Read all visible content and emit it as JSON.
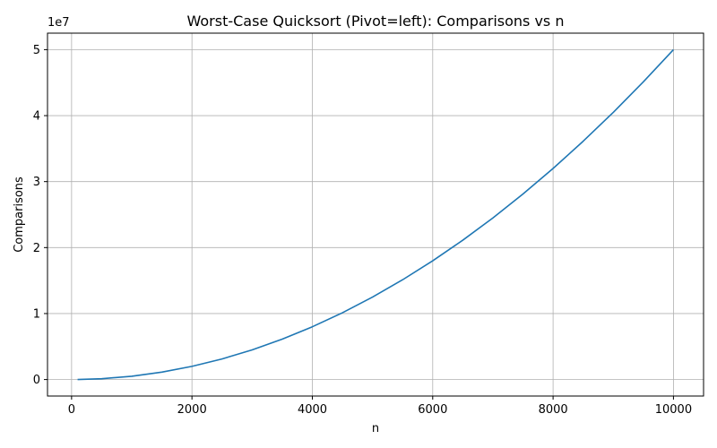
{
  "chart_data": {
    "type": "line",
    "title": "Worst-Case Quicksort (Pivot=left): Comparisons vs n",
    "xlabel": "n",
    "ylabel": "Comparisons",
    "y_offset_label": "1e7",
    "xlim": [
      -400,
      10500
    ],
    "ylim": [
      -0.25,
      5.25
    ],
    "x_ticks": [
      0,
      2000,
      4000,
      6000,
      8000,
      10000
    ],
    "x_tick_labels": [
      "0",
      "2000",
      "4000",
      "6000",
      "8000",
      "10000"
    ],
    "y_ticks": [
      0,
      1,
      2,
      3,
      4,
      5
    ],
    "y_tick_labels": [
      "0",
      "1",
      "2",
      "3",
      "4",
      "5"
    ],
    "grid": true,
    "series": [
      {
        "color": "#1f77b4",
        "x": [
          100,
          500,
          1000,
          1500,
          2000,
          2500,
          3000,
          3500,
          4000,
          4500,
          5000,
          5500,
          6000,
          6500,
          7000,
          7500,
          8000,
          8500,
          9000,
          9500,
          10000
        ],
        "y": [
          0.000495,
          0.012475,
          0.04995,
          0.112425,
          0.1999,
          0.312375,
          0.44985,
          0.612325,
          0.7998,
          1.012275,
          1.24975,
          1.512225,
          1.7997,
          2.112175,
          2.44965,
          2.812125,
          3.1996,
          3.612075,
          4.04955,
          4.512025,
          4.9995
        ]
      }
    ]
  }
}
